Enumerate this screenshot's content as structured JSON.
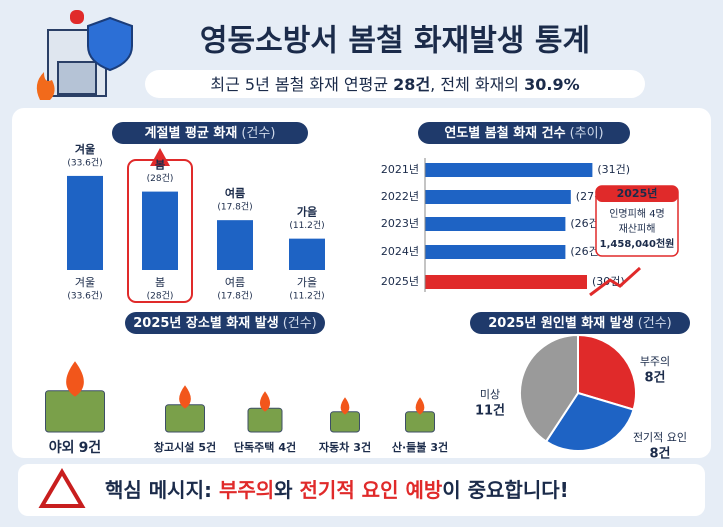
{
  "header": {
    "title": "영동소방서 봄철 화재발생 통계",
    "subtitle": [
      "최근 5년 봄철 화재 연평균 ",
      "28건",
      ", 전체 화재의 ",
      "30.9%"
    ]
  },
  "chart_data": [
    {
      "type": "bar",
      "title": "계절별 평균 화재",
      "unit": "(건수)",
      "categories": [
        "겨울",
        "봄",
        "여름",
        "가을"
      ],
      "values": [
        33.6,
        28,
        17.8,
        11.2
      ],
      "value_labels": [
        "(33.6건)",
        "(28건)",
        "(17.8건)",
        "(11.2건)"
      ],
      "color": "#1e63c4"
    },
    {
      "type": "hbar",
      "title": "연도별 봄철 화재 건수",
      "unit": "(추이)",
      "categories": [
        "2021년",
        "2022년",
        "2023년",
        "2024년",
        "2025년"
      ],
      "values": [
        31,
        27,
        26,
        26,
        30
      ],
      "value_labels": [
        "(31건)",
        "(27건)",
        "(26건)",
        "(26건)",
        "(30건)"
      ],
      "colors": [
        "#1e63c4",
        "#1e63c4",
        "#1e63c4",
        "#1e63c4",
        "#e02a2a"
      ],
      "annotation": {
        "title": "2025년",
        "casualties": "인명피해 4명",
        "damage_label": "재산피해",
        "damage": "1,458,040천원"
      }
    },
    {
      "type": "icon",
      "title": "2025년 장소별 화재 발생",
      "unit": "(건수)",
      "categories": [
        "야외",
        "창고시설",
        "단독주택",
        "자동차",
        "산·들불"
      ],
      "values": [
        9,
        5,
        4,
        3,
        3
      ],
      "value_labels": [
        "9건",
        "5건",
        "4건",
        "3건",
        "3건"
      ]
    },
    {
      "type": "pie",
      "title": "2025년 원인별 화재 발생",
      "unit": "(건수)",
      "categories": [
        "부주의",
        "전기적 요인",
        "미상"
      ],
      "values": [
        8,
        8,
        11
      ],
      "value_labels": [
        "8건",
        "8건",
        "11건"
      ],
      "colors": [
        "#e02a2a",
        "#1e63c4",
        "#9a9a9a"
      ]
    }
  ],
  "footer": {
    "message": [
      "핵심 메시지: ",
      "부주의",
      "와 ",
      "전기적 요인 예방",
      "이 중요합니다!"
    ]
  }
}
